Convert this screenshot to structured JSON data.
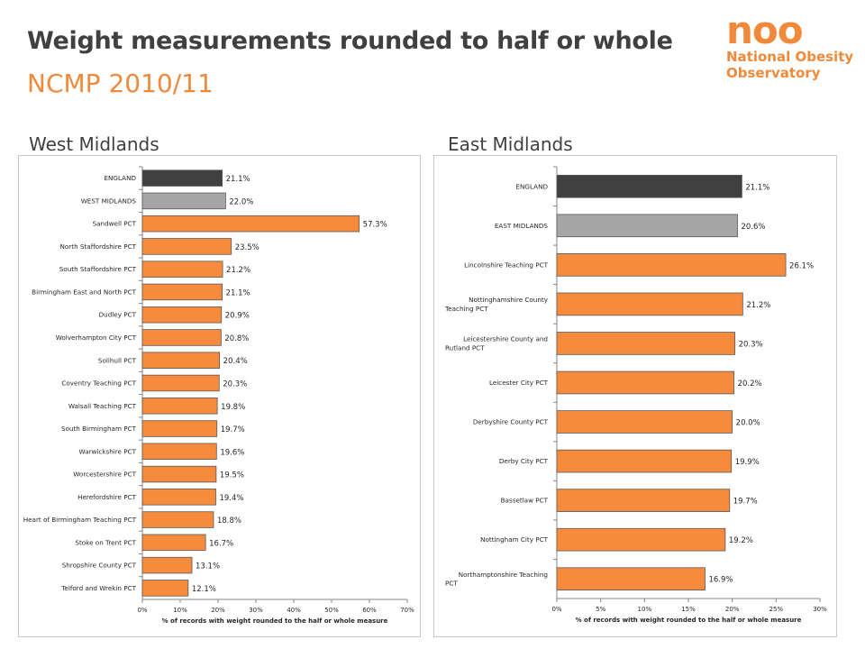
{
  "page": {
    "title": "Weight measurements rounded to half or whole",
    "subtitle": "NCMP 2010/11"
  },
  "logo": {
    "mark": "noo",
    "line1": "National Obesity",
    "line2": "Observatory"
  },
  "colors": {
    "england": "#404040",
    "region": "#a6a6a6",
    "pct": "#f68b3d",
    "title": "#404040",
    "accent": "#f08a3a"
  },
  "chart_data": [
    {
      "type": "bar",
      "orientation": "horizontal",
      "panel_title": "West Midlands",
      "categories": [
        "ENGLAND",
        "WEST MIDLANDS",
        "Sandwell PCT",
        "North Staffordshire PCT",
        "South Staffordshire PCT",
        "Birmingham East and North PCT",
        "Dudley PCT",
        "Wolverhampton City PCT",
        "Solihull PCT",
        "Coventry Teaching PCT",
        "Walsall Teaching PCT",
        "South Birmingham PCT",
        "Warwickshire PCT",
        "Worcestershire PCT",
        "Herefordshire PCT",
        "Heart of Birmingham Teaching PCT",
        "Stoke on Trent PCT",
        "Shropshire County PCT",
        "Telford and Wrekin PCT"
      ],
      "values": [
        21.1,
        22.0,
        57.3,
        23.5,
        21.2,
        21.1,
        20.9,
        20.8,
        20.4,
        20.3,
        19.8,
        19.7,
        19.6,
        19.5,
        19.4,
        18.8,
        16.7,
        13.1,
        12.1
      ],
      "data_labels": [
        "21.1%",
        "22.0%",
        "57.3%",
        "23.5%",
        "21.2%",
        "21.1%",
        "20.9%",
        "20.8%",
        "20.4%",
        "20.3%",
        "19.8%",
        "19.7%",
        "19.6%",
        "19.5%",
        "19.4%",
        "18.8%",
        "16.7%",
        "13.1%",
        "12.1%"
      ],
      "xlabel": "% of records with weight rounded to the half or whole measure",
      "xlim": [
        0,
        70
      ],
      "xticks": [
        0,
        10,
        20,
        30,
        40,
        50,
        60,
        70
      ],
      "xtick_labels": [
        "0%",
        "10%",
        "20%",
        "30%",
        "40%",
        "50%",
        "60%",
        "70%"
      ],
      "grid": false,
      "legend": "none"
    },
    {
      "type": "bar",
      "orientation": "horizontal",
      "panel_title": "East Midlands",
      "categories": [
        "ENGLAND",
        "EAST MIDLANDS",
        "Lincolnshire Teaching PCT",
        "Nottinghamshire County Teaching PCT",
        "Leicestershire County and Rutland PCT",
        "Leicester City PCT",
        "Derbyshire County PCT",
        "Derby City PCT",
        "Bassetlaw PCT",
        "Nottingham City PCT",
        "Northamptonshire Teaching PCT"
      ],
      "values": [
        21.1,
        20.6,
        26.1,
        21.2,
        20.3,
        20.2,
        20.0,
        19.9,
        19.7,
        19.2,
        16.9
      ],
      "data_labels": [
        "21.1%",
        "20.6%",
        "26.1%",
        "21.2%",
        "20.3%",
        "20.2%",
        "20.0%",
        "19.9%",
        "19.7%",
        "19.2%",
        "16.9%"
      ],
      "xlabel": "% of records with weight rounded to the half or whole measure",
      "xlim": [
        0,
        30
      ],
      "xticks": [
        0,
        5,
        10,
        15,
        20,
        25,
        30
      ],
      "xtick_labels": [
        "0%",
        "5%",
        "10%",
        "15%",
        "20%",
        "25%",
        "30%"
      ],
      "grid": false,
      "legend": "none"
    }
  ]
}
